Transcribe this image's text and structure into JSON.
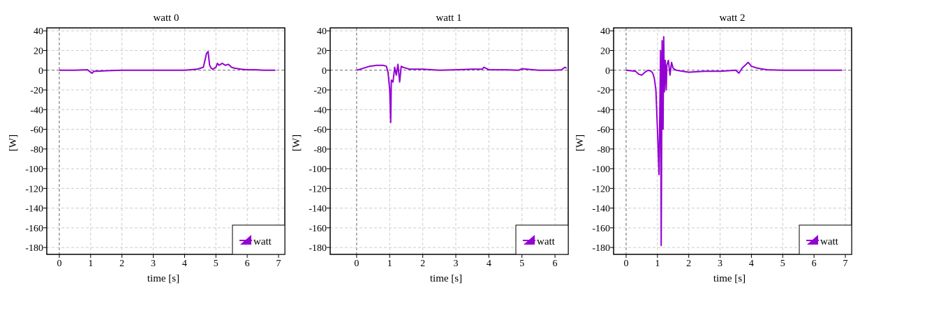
{
  "chart_data": [
    {
      "type": "line",
      "title": "watt 0",
      "xlabel": "time [s]",
      "ylabel": "[W]",
      "xlim": [
        -0.4,
        7.2
      ],
      "ylim": [
        -187,
        43
      ],
      "xticks": [
        0,
        1,
        2,
        3,
        4,
        5,
        6,
        7
      ],
      "yticks": [
        40,
        20,
        0,
        -20,
        -40,
        -60,
        -80,
        -100,
        -120,
        -140,
        -160,
        -180
      ],
      "grid": true,
      "legend": "bottom-right",
      "series": [
        {
          "name": "watt",
          "color": "#9400d3",
          "x": [
            0.0,
            0.5,
            0.9,
            1.0,
            1.05,
            1.1,
            1.2,
            1.5,
            2.0,
            3.0,
            4.0,
            4.4,
            4.6,
            4.65,
            4.7,
            4.75,
            4.8,
            4.85,
            4.9,
            5.0,
            5.05,
            5.1,
            5.2,
            5.3,
            5.4,
            5.5,
            5.6,
            5.8,
            6.0,
            6.3,
            6.5,
            6.9
          ],
          "y": [
            0,
            0,
            0.5,
            -2,
            -3,
            -1,
            -1,
            -0.5,
            0,
            0,
            0,
            1,
            3,
            10,
            17,
            19,
            5,
            2,
            1,
            3,
            7,
            5,
            7,
            5,
            6,
            3,
            2,
            1,
            0.5,
            0.5,
            0,
            0
          ]
        }
      ]
    },
    {
      "type": "line",
      "title": "watt 1",
      "xlabel": "time [s]",
      "ylabel": "[W]",
      "xlim": [
        -0.8,
        6.4
      ],
      "ylim": [
        -187,
        43
      ],
      "xticks": [
        0,
        1,
        2,
        3,
        4,
        5,
        6
      ],
      "yticks": [
        40,
        20,
        0,
        -20,
        -40,
        -60,
        -80,
        -100,
        -120,
        -140,
        -160,
        -180
      ],
      "grid": true,
      "legend": "bottom-right",
      "series": [
        {
          "name": "watt",
          "color": "#9400d3",
          "x": [
            0.0,
            0.2,
            0.4,
            0.6,
            0.8,
            0.9,
            0.95,
            1.0,
            1.03,
            1.05,
            1.1,
            1.15,
            1.2,
            1.25,
            1.3,
            1.35,
            1.4,
            1.5,
            1.6,
            2.0,
            2.5,
            3.0,
            3.5,
            3.8,
            3.85,
            4.0,
            4.5,
            4.9,
            5.0,
            5.5,
            6.0,
            6.2,
            6.3,
            6.35
          ],
          "y": [
            0,
            2,
            4,
            5,
            5,
            4,
            -2,
            -20,
            -53,
            -10,
            -12,
            3,
            -5,
            6,
            -12,
            4,
            3,
            2,
            1,
            1,
            0,
            0.5,
            1,
            1,
            3,
            0.5,
            0.5,
            0,
            1.5,
            0,
            0,
            0.5,
            3,
            2
          ]
        }
      ]
    },
    {
      "type": "line",
      "title": "watt 2",
      "xlabel": "time [s]",
      "ylabel": "[W]",
      "xlim": [
        -0.4,
        7.2
      ],
      "ylim": [
        -187,
        43
      ],
      "xticks": [
        0,
        1,
        2,
        3,
        4,
        5,
        6,
        7
      ],
      "yticks": [
        40,
        20,
        0,
        -20,
        -40,
        -60,
        -80,
        -100,
        -120,
        -140,
        -160,
        -180
      ],
      "grid": true,
      "legend": "bottom-right",
      "series": [
        {
          "name": "watt",
          "color": "#9400d3",
          "x": [
            0.0,
            0.3,
            0.4,
            0.5,
            0.6,
            0.7,
            0.8,
            0.85,
            0.9,
            0.95,
            1.0,
            1.05,
            1.1,
            1.12,
            1.15,
            1.18,
            1.2,
            1.22,
            1.25,
            1.28,
            1.3,
            1.35,
            1.4,
            1.45,
            1.5,
            1.6,
            1.8,
            2.0,
            2.5,
            3.0,
            3.5,
            3.6,
            3.7,
            3.8,
            3.9,
            4.0,
            4.2,
            4.5,
            5.0,
            5.5,
            6.0,
            6.5,
            6.9
          ],
          "y": [
            0,
            -1,
            -4,
            -5,
            -2,
            0,
            -1,
            -3,
            -8,
            -20,
            -60,
            -106,
            20,
            -178,
            30,
            -60,
            34,
            -22,
            10,
            -20,
            5,
            10,
            -5,
            8,
            2,
            0,
            -1,
            -2,
            -1,
            -1,
            0,
            -3,
            2,
            5,
            8,
            4,
            2,
            0.5,
            0,
            0,
            0,
            0,
            0
          ]
        }
      ]
    }
  ]
}
